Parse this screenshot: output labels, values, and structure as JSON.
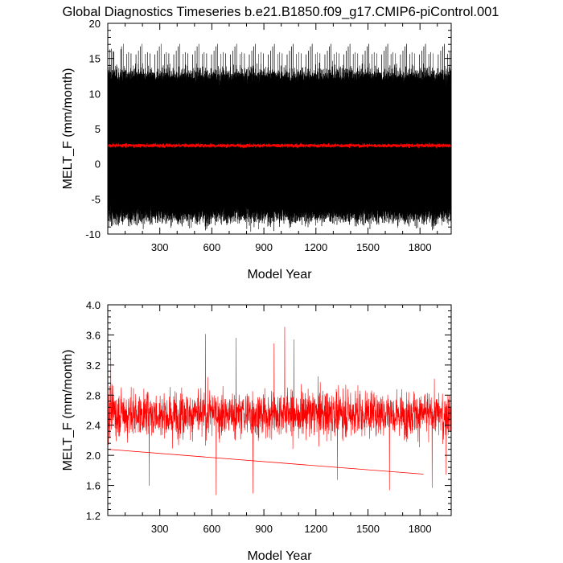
{
  "figure": {
    "title": "Global Diagnostics Timeseries b.e21.B1850.f09_g17.CMIP6-piControl.001"
  },
  "chart_data": [
    {
      "type": "line",
      "xlabel": "Model Year",
      "ylabel": "MELT_F (mm/month)",
      "xlim": [
        0,
        1980
      ],
      "ylim": [
        -10,
        20
      ],
      "xticks": [
        300,
        600,
        900,
        1200,
        1500,
        1800
      ],
      "yticks": [
        -10,
        -5,
        0,
        5,
        10,
        15,
        20
      ],
      "grid": false,
      "series": [
        {
          "color": "#000000",
          "kind": "monthly",
          "mean": 2.6,
          "lower_envelope": -7.5,
          "upper_envelope": 13.5,
          "min": -9,
          "max": 17.3
        },
        {
          "color": "#ff0000",
          "kind": "annual_mean",
          "mean": 2.6,
          "lower_envelope": 2.2,
          "upper_envelope": 3.0
        }
      ]
    },
    {
      "type": "line",
      "xlabel": "Model Year",
      "ylabel": "MELT_F (mm/month)",
      "xlim": [
        0,
        1980
      ],
      "ylim": [
        1.2,
        4.0
      ],
      "xticks": [
        300,
        600,
        900,
        1200,
        1500,
        1800
      ],
      "yticks": [
        "1.2",
        "1.6",
        "2.0",
        "2.4",
        "2.8",
        "3.2",
        "3.6",
        "4.0"
      ],
      "grid": false,
      "series": [
        {
          "color": "#ff0000",
          "kind": "annual_mean",
          "mean": 2.55,
          "min": 1.45,
          "max": 3.73,
          "wraparound_line": {
            "x": [
              0,
              1820
            ],
            "y": [
              2.08,
              1.75
            ]
          }
        }
      ]
    }
  ]
}
